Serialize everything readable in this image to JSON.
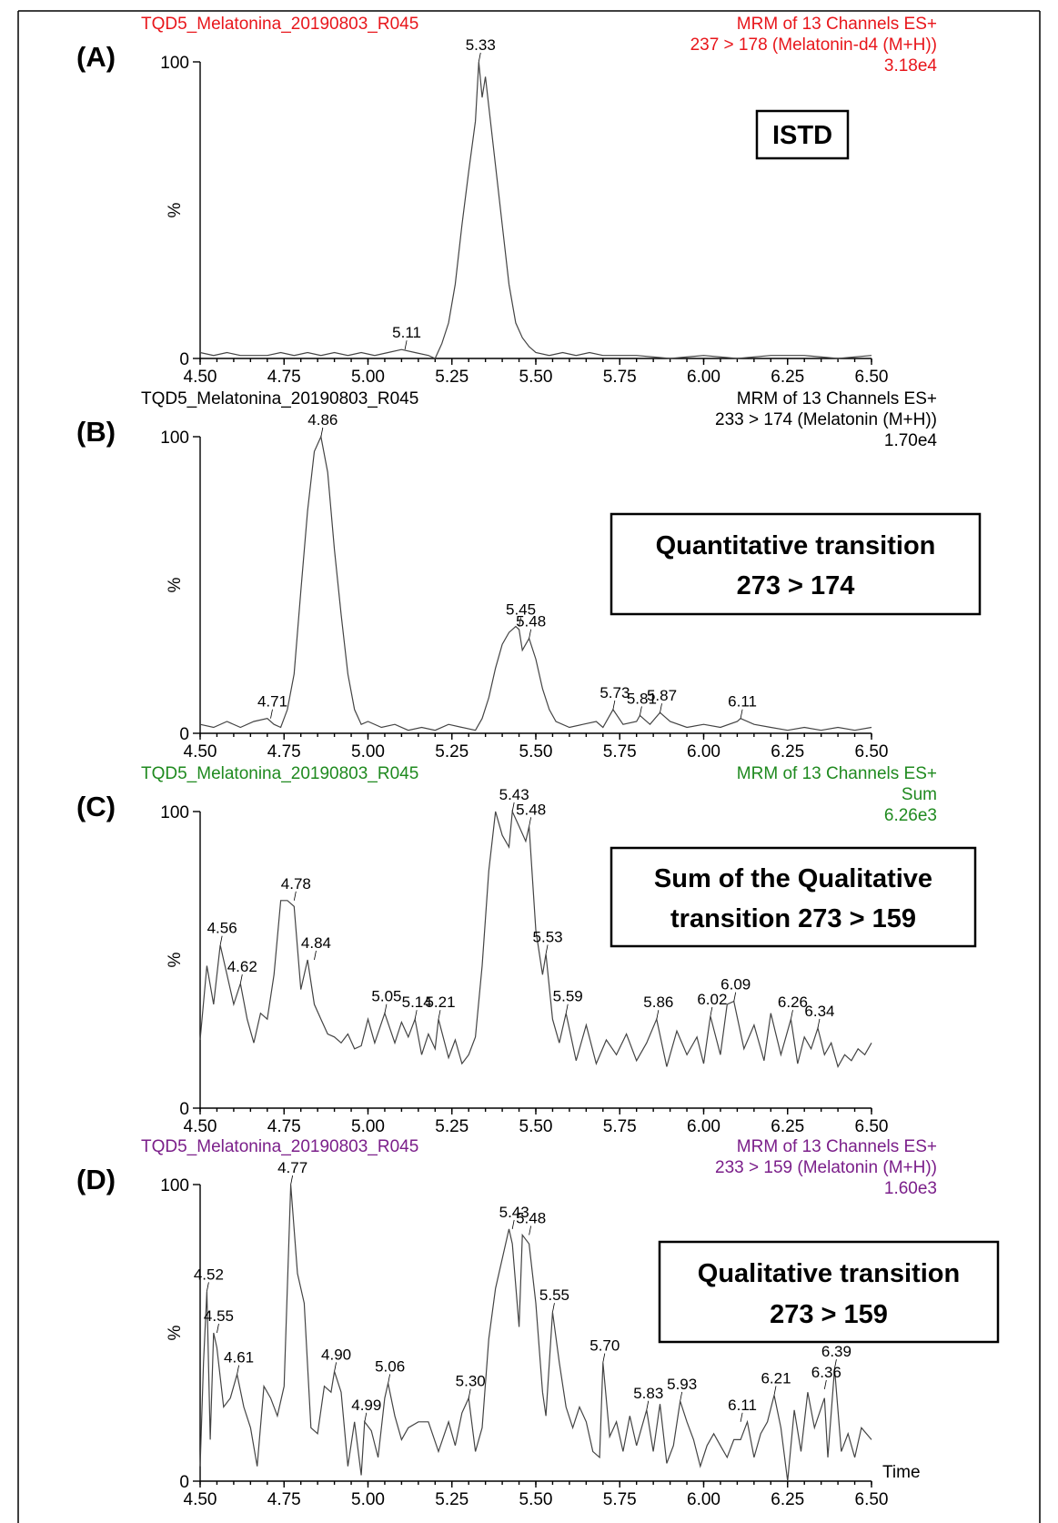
{
  "chart_data": [
    {
      "type": "line",
      "panel_label": "(A)",
      "color": "#e8161b",
      "title_left": "TQD5_Melatonina_20190803_R045",
      "title_right": [
        "MRM of 13 Channels ES+",
        "237 > 178 (Melatonin-d4 (M+H))",
        "3.18e4"
      ],
      "ylabel": "%",
      "y_ticks": [
        "0",
        "100"
      ],
      "xlim": [
        4.5,
        6.5
      ],
      "ylim": [
        0,
        100
      ],
      "x_ticks": [
        "4.50",
        "4.75",
        "5.00",
        "5.25",
        "5.50",
        "5.75",
        "6.00",
        "6.25",
        "6.50"
      ],
      "xlabel": "",
      "box_text": [
        "ISTD"
      ],
      "peak_labels": [
        {
          "label": "5.33",
          "x": 5.33,
          "y": 100
        },
        {
          "label": "5.11",
          "x": 5.11,
          "y": 3
        }
      ],
      "x": [
        4.5,
        4.54,
        4.58,
        4.62,
        4.66,
        4.7,
        4.74,
        4.78,
        4.82,
        4.86,
        4.9,
        4.94,
        4.98,
        5.02,
        5.06,
        5.1,
        5.14,
        5.18,
        5.2,
        5.22,
        5.24,
        5.26,
        5.28,
        5.3,
        5.32,
        5.33,
        5.34,
        5.35,
        5.36,
        5.38,
        5.4,
        5.42,
        5.44,
        5.46,
        5.48,
        5.5,
        5.54,
        5.58,
        5.62,
        5.66,
        5.7,
        5.8,
        5.9,
        6.0,
        6.1,
        6.2,
        6.3,
        6.4,
        6.5
      ],
      "y": [
        2,
        1,
        2,
        1,
        1,
        1,
        2,
        1,
        2,
        1,
        2,
        1,
        2,
        1,
        2,
        3,
        2,
        1,
        0,
        5,
        12,
        25,
        45,
        63,
        80,
        100,
        88,
        95,
        85,
        65,
        45,
        25,
        12,
        7,
        4,
        2,
        1,
        2,
        1,
        2,
        1,
        1,
        0,
        1,
        0,
        1,
        1,
        0,
        1
      ]
    },
    {
      "type": "line",
      "panel_label": "(B)",
      "color": "#000000",
      "title_left": "TQD5_Melatonina_20190803_R045",
      "title_right": [
        "MRM of 13 Channels ES+",
        "233 > 174 (Melatonin (M+H))",
        "1.70e4"
      ],
      "ylabel": "%",
      "y_ticks": [
        "0",
        "100"
      ],
      "xlim": [
        4.5,
        6.5
      ],
      "ylim": [
        0,
        100
      ],
      "x_ticks": [
        "4.50",
        "4.75",
        "5.00",
        "5.25",
        "5.50",
        "5.75",
        "6.00",
        "6.25",
        "6.50"
      ],
      "xlabel": "",
      "box_text": [
        "Quantitative transition",
        "273 > 174"
      ],
      "peak_labels": [
        {
          "label": "4.86",
          "x": 4.86,
          "y": 100
        },
        {
          "label": "4.71",
          "x": 4.71,
          "y": 5
        },
        {
          "label": "5.45",
          "x": 5.45,
          "y": 36
        },
        {
          "label": "5.48",
          "x": 5.48,
          "y": 32
        },
        {
          "label": "5.73",
          "x": 5.73,
          "y": 8
        },
        {
          "label": "5.81",
          "x": 5.81,
          "y": 6
        },
        {
          "label": "5.87",
          "x": 5.87,
          "y": 7
        },
        {
          "label": "6.11",
          "x": 6.11,
          "y": 5
        }
      ],
      "x": [
        4.5,
        4.54,
        4.58,
        4.62,
        4.66,
        4.7,
        4.72,
        4.74,
        4.76,
        4.78,
        4.8,
        4.82,
        4.84,
        4.86,
        4.88,
        4.9,
        4.92,
        4.94,
        4.96,
        4.98,
        5.0,
        5.04,
        5.08,
        5.12,
        5.16,
        5.2,
        5.24,
        5.28,
        5.32,
        5.34,
        5.36,
        5.38,
        5.4,
        5.42,
        5.44,
        5.45,
        5.46,
        5.47,
        5.48,
        5.5,
        5.52,
        5.54,
        5.56,
        5.6,
        5.64,
        5.68,
        5.7,
        5.73,
        5.76,
        5.8,
        5.81,
        5.84,
        5.87,
        5.9,
        5.95,
        6.0,
        6.05,
        6.1,
        6.11,
        6.15,
        6.2,
        6.25,
        6.3,
        6.35,
        6.4,
        6.45,
        6.5
      ],
      "y": [
        3,
        2,
        4,
        2,
        4,
        5,
        3,
        2,
        8,
        20,
        48,
        75,
        95,
        100,
        88,
        62,
        40,
        20,
        8,
        3,
        4,
        2,
        3,
        1,
        2,
        1,
        3,
        2,
        1,
        5,
        12,
        22,
        30,
        34,
        36,
        35,
        28,
        30,
        32,
        25,
        15,
        8,
        4,
        2,
        3,
        4,
        2,
        8,
        3,
        4,
        6,
        3,
        7,
        4,
        2,
        3,
        2,
        4,
        5,
        3,
        2,
        1,
        2,
        1,
        2,
        1,
        2
      ]
    },
    {
      "type": "line",
      "panel_label": "(C)",
      "color": "#1f8a1f",
      "title_left": "TQD5_Melatonina_20190803_R045",
      "title_right": [
        "MRM of 13 Channels ES+",
        "Sum",
        "6.26e3"
      ],
      "ylabel": "%",
      "y_ticks": [
        "0",
        "100"
      ],
      "xlim": [
        4.5,
        6.5
      ],
      "ylim": [
        0,
        100
      ],
      "x_ticks": [
        "4.50",
        "4.75",
        "5.00",
        "5.25",
        "5.50",
        "5.75",
        "6.00",
        "6.25",
        "6.50"
      ],
      "xlabel": "",
      "box_text": [
        "Sum of the Qualitative",
        "transition    273 > 159"
      ],
      "peak_labels": [
        {
          "label": "4.56",
          "x": 4.56,
          "y": 55
        },
        {
          "label": "4.62",
          "x": 4.62,
          "y": 42
        },
        {
          "label": "4.78",
          "x": 4.78,
          "y": 70
        },
        {
          "label": "4.84",
          "x": 4.84,
          "y": 50
        },
        {
          "label": "5.05",
          "x": 5.05,
          "y": 32
        },
        {
          "label": "5.14",
          "x": 5.14,
          "y": 30
        },
        {
          "label": "5.21",
          "x": 5.21,
          "y": 30
        },
        {
          "label": "5.43",
          "x": 5.43,
          "y": 100
        },
        {
          "label": "5.48",
          "x": 5.48,
          "y": 95
        },
        {
          "label": "5.53",
          "x": 5.53,
          "y": 52
        },
        {
          "label": "5.59",
          "x": 5.59,
          "y": 32
        },
        {
          "label": "5.86",
          "x": 5.86,
          "y": 30
        },
        {
          "label": "6.02",
          "x": 6.02,
          "y": 31
        },
        {
          "label": "6.09",
          "x": 6.09,
          "y": 36
        },
        {
          "label": "6.26",
          "x": 6.26,
          "y": 30
        },
        {
          "label": "6.34",
          "x": 6.34,
          "y": 27
        }
      ],
      "x": [
        4.5,
        4.52,
        4.54,
        4.56,
        4.58,
        4.6,
        4.62,
        4.64,
        4.66,
        4.68,
        4.7,
        4.72,
        4.74,
        4.76,
        4.78,
        4.8,
        4.82,
        4.84,
        4.86,
        4.88,
        4.9,
        4.92,
        4.94,
        4.96,
        4.98,
        5.0,
        5.02,
        5.05,
        5.08,
        5.1,
        5.12,
        5.14,
        5.16,
        5.18,
        5.2,
        5.21,
        5.24,
        5.26,
        5.28,
        5.3,
        5.32,
        5.34,
        5.36,
        5.38,
        5.4,
        5.42,
        5.43,
        5.45,
        5.47,
        5.48,
        5.5,
        5.52,
        5.53,
        5.55,
        5.57,
        5.59,
        5.62,
        5.65,
        5.68,
        5.71,
        5.74,
        5.77,
        5.8,
        5.83,
        5.86,
        5.89,
        5.92,
        5.95,
        5.98,
        6.0,
        6.02,
        6.05,
        6.07,
        6.09,
        6.12,
        6.15,
        6.18,
        6.2,
        6.23,
        6.26,
        6.28,
        6.3,
        6.32,
        6.34,
        6.36,
        6.38,
        6.4,
        6.42,
        6.44,
        6.46,
        6.48,
        6.5
      ],
      "y": [
        23,
        48,
        35,
        55,
        45,
        35,
        42,
        30,
        22,
        32,
        30,
        45,
        70,
        70,
        68,
        40,
        50,
        35,
        30,
        25,
        24,
        22,
        25,
        20,
        21,
        30,
        22,
        32,
        22,
        29,
        24,
        30,
        18,
        25,
        20,
        30,
        17,
        23,
        15,
        18,
        24,
        48,
        80,
        100,
        92,
        88,
        100,
        95,
        90,
        95,
        60,
        45,
        52,
        30,
        22,
        32,
        16,
        28,
        15,
        23,
        18,
        25,
        16,
        22,
        30,
        14,
        26,
        18,
        24,
        15,
        31,
        18,
        35,
        36,
        20,
        28,
        16,
        32,
        18,
        30,
        15,
        24,
        20,
        27,
        18,
        22,
        14,
        18,
        16,
        20,
        18,
        22
      ]
    },
    {
      "type": "line",
      "panel_label": "(D)",
      "color": "#7b1f8a",
      "title_left": "TQD5_Melatonina_20190803_R045",
      "title_right": [
        "MRM of 13 Channels ES+",
        "233 > 159 (Melatonin (M+H))",
        "1.60e3"
      ],
      "ylabel": "%",
      "y_ticks": [
        "0",
        "100"
      ],
      "xlim": [
        4.5,
        6.5
      ],
      "ylim": [
        0,
        100
      ],
      "x_ticks": [
        "4.50",
        "4.75",
        "5.00",
        "5.25",
        "5.50",
        "5.75",
        "6.00",
        "6.25",
        "6.50"
      ],
      "xlabel": "Time",
      "box_text": [
        "Qualitative transition",
        "273 > 159"
      ],
      "peak_labels": [
        {
          "label": "4.52",
          "x": 4.52,
          "y": 64
        },
        {
          "label": "4.55",
          "x": 4.55,
          "y": 50
        },
        {
          "label": "4.61",
          "x": 4.61,
          "y": 36
        },
        {
          "label": "4.77",
          "x": 4.77,
          "y": 100
        },
        {
          "label": "4.90",
          "x": 4.9,
          "y": 37
        },
        {
          "label": "4.99",
          "x": 4.99,
          "y": 20
        },
        {
          "label": "5.06",
          "x": 5.06,
          "y": 33
        },
        {
          "label": "5.30",
          "x": 5.3,
          "y": 28
        },
        {
          "label": "5.43",
          "x": 5.43,
          "y": 85
        },
        {
          "label": "5.48",
          "x": 5.48,
          "y": 83
        },
        {
          "label": "5.55",
          "x": 5.55,
          "y": 57
        },
        {
          "label": "5.70",
          "x": 5.7,
          "y": 40
        },
        {
          "label": "5.83",
          "x": 5.83,
          "y": 24
        },
        {
          "label": "5.93",
          "x": 5.93,
          "y": 27
        },
        {
          "label": "6.11",
          "x": 6.11,
          "y": 20
        },
        {
          "label": "6.21",
          "x": 6.21,
          "y": 29
        },
        {
          "label": "6.36",
          "x": 6.36,
          "y": 31
        },
        {
          "label": "6.39",
          "x": 6.39,
          "y": 38
        }
      ],
      "x": [
        4.5,
        4.51,
        4.52,
        4.53,
        4.54,
        4.55,
        4.57,
        4.59,
        4.61,
        4.63,
        4.65,
        4.67,
        4.69,
        4.71,
        4.73,
        4.75,
        4.77,
        4.79,
        4.81,
        4.83,
        4.85,
        4.87,
        4.89,
        4.9,
        4.92,
        4.94,
        4.96,
        4.98,
        4.99,
        5.01,
        5.03,
        5.05,
        5.06,
        5.08,
        5.1,
        5.12,
        5.15,
        5.18,
        5.21,
        5.24,
        5.26,
        5.28,
        5.3,
        5.32,
        5.34,
        5.36,
        5.38,
        5.4,
        5.42,
        5.43,
        5.45,
        5.46,
        5.48,
        5.5,
        5.52,
        5.53,
        5.55,
        5.57,
        5.59,
        5.61,
        5.63,
        5.65,
        5.67,
        5.69,
        5.7,
        5.72,
        5.74,
        5.76,
        5.78,
        5.8,
        5.83,
        5.85,
        5.87,
        5.89,
        5.91,
        5.93,
        5.95,
        5.97,
        5.99,
        6.01,
        6.03,
        6.05,
        6.07,
        6.09,
        6.11,
        6.13,
        6.15,
        6.17,
        6.19,
        6.21,
        6.23,
        6.25,
        6.27,
        6.29,
        6.31,
        6.33,
        6.36,
        6.37,
        6.39,
        6.41,
        6.43,
        6.45,
        6.47,
        6.5
      ],
      "y": [
        5,
        40,
        64,
        14,
        50,
        45,
        25,
        28,
        36,
        25,
        18,
        5,
        32,
        28,
        22,
        32,
        100,
        70,
        60,
        18,
        16,
        32,
        30,
        37,
        30,
        5,
        20,
        2,
        20,
        17,
        8,
        28,
        33,
        22,
        14,
        18,
        20,
        20,
        10,
        20,
        12,
        23,
        28,
        10,
        18,
        48,
        65,
        75,
        85,
        80,
        52,
        83,
        80,
        60,
        30,
        22,
        57,
        40,
        25,
        18,
        25,
        20,
        10,
        8,
        40,
        15,
        20,
        10,
        22,
        12,
        24,
        10,
        26,
        6,
        12,
        27,
        20,
        14,
        5,
        12,
        16,
        12,
        8,
        14,
        14,
        20,
        8,
        16,
        20,
        29,
        18,
        0,
        24,
        10,
        30,
        18,
        28,
        8,
        38,
        10,
        16,
        8,
        18,
        14
      ]
    }
  ]
}
